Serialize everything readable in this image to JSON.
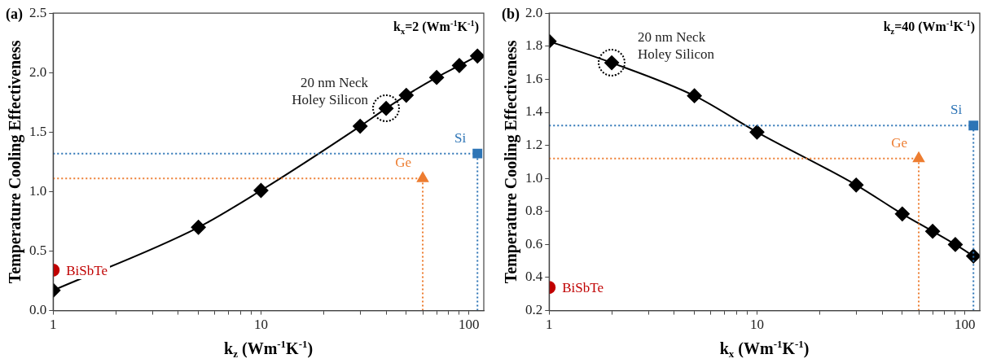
{
  "chart_data": [
    {
      "type": "line",
      "title": "(a)",
      "xlabel": "k$_{z}$ (Wm$^{-1}$K$^{-1}$)",
      "ylabel": "Temperature Cooling Effectiveness",
      "log": "x",
      "grid": false,
      "legend": false,
      "xlim": [
        1,
        118
      ],
      "xticks": [
        1,
        {
          "value": 2,
          "label": null
        },
        {
          "value": 3,
          "label": null
        },
        {
          "value": 4,
          "label": null
        },
        {
          "value": 5,
          "label": null
        },
        {
          "value": 6,
          "label": null
        },
        {
          "value": 7,
          "label": null
        },
        {
          "value": 8,
          "label": null
        },
        {
          "value": 9,
          "label": null
        },
        10,
        {
          "value": 20,
          "label": null
        },
        {
          "value": 30,
          "label": null
        },
        {
          "value": 40,
          "label": null
        },
        {
          "value": 50,
          "label": null
        },
        {
          "value": 60,
          "label": null
        },
        {
          "value": 70,
          "label": null
        },
        {
          "value": 80,
          "label": null
        },
        {
          "value": 90,
          "label": null
        },
        100
      ],
      "ylim": [
        0,
        2.5
      ],
      "yticks": [
        {
          "value": 0,
          "label": "0.0"
        },
        {
          "value": 0.5,
          "label": "0.5"
        },
        {
          "value": 1,
          "label": "1.0"
        },
        {
          "value": 1.5,
          "label": "1.5"
        },
        {
          "value": 2,
          "label": "2.0"
        },
        {
          "value": 2.5,
          "label": "2.5"
        }
      ],
      "series": [
        {
          "type": "line",
          "color": "#000000",
          "marker": "diamond",
          "x": [
            1,
            5,
            10,
            30,
            40,
            50,
            70,
            90,
            110
          ],
          "values": [
            0.17,
            0.7,
            1.01,
            1.55,
            1.7,
            1.81,
            1.96,
            2.06,
            2.14
          ]
        },
        {
          "type": "scatter",
          "name": "BiSbTe",
          "color": "#c00000",
          "marker": "circle",
          "x": [
            1
          ],
          "values": [
            0.34
          ]
        },
        {
          "type": "scatter",
          "name": "Si",
          "color": "#2e75b6",
          "marker": "square",
          "x": [
            110
          ],
          "values": [
            1.32
          ]
        },
        {
          "type": "scatter",
          "name": "Ge",
          "color": "#ed7d31",
          "marker": "triangle",
          "x": [
            60
          ],
          "values": [
            1.11
          ]
        }
      ],
      "ref_lines": [
        {
          "axis": "y",
          "value": 1.32,
          "color": "#2e75b6",
          "line_style": "dotted"
        },
        {
          "axis": "x",
          "value": 110,
          "color": "#2e75b6",
          "line_style": "dotted"
        },
        {
          "axis": "y",
          "value": 1.11,
          "color": "#ed7d31",
          "line_style": "dotted"
        },
        {
          "axis": "x",
          "value": 60,
          "color": "#ed7d31",
          "line_style": "dotted"
        }
      ],
      "annotations": [
        "k$_{x}$=2 (Wm$^{-1}$K$^{-1}$)",
        {
          "text": "20 nm Neck Holey Silicon",
          "x": 40,
          "y": 1.7
        }
      ]
    },
    {
      "type": "line",
      "title": "(b)",
      "xlabel": "k$_{x}$ (Wm$^{-1}$K$^{-1}$)",
      "ylabel": "Temperature Cooling Effectiveness",
      "log": "x",
      "grid": false,
      "legend": false,
      "xlim": [
        1,
        118
      ],
      "xticks": [
        1,
        {
          "value": 2,
          "label": null
        },
        {
          "value": 3,
          "label": null
        },
        {
          "value": 4,
          "label": null
        },
        {
          "value": 5,
          "label": null
        },
        {
          "value": 6,
          "label": null
        },
        {
          "value": 7,
          "label": null
        },
        {
          "value": 8,
          "label": null
        },
        {
          "value": 9,
          "label": null
        },
        10,
        {
          "value": 20,
          "label": null
        },
        {
          "value": 30,
          "label": null
        },
        {
          "value": 40,
          "label": null
        },
        {
          "value": 50,
          "label": null
        },
        {
          "value": 60,
          "label": null
        },
        {
          "value": 70,
          "label": null
        },
        {
          "value": 80,
          "label": null
        },
        {
          "value": 90,
          "label": null
        },
        100
      ],
      "ylim": [
        0.2,
        2.0
      ],
      "yticks": [
        {
          "value": 0.2,
          "label": "0.2"
        },
        {
          "value": 0.4,
          "label": "0.4"
        },
        {
          "value": 0.6,
          "label": "0.6"
        },
        {
          "value": 0.8,
          "label": "0.8"
        },
        {
          "value": 1.0,
          "label": "1.0"
        },
        {
          "value": 1.2,
          "label": "1.2"
        },
        {
          "value": 1.4,
          "label": "1.4"
        },
        {
          "value": 1.6,
          "label": "1.6"
        },
        {
          "value": 1.8,
          "label": "1.8"
        },
        {
          "value": 2.0,
          "label": "2.0"
        }
      ],
      "series": [
        {
          "type": "line",
          "color": "#000000",
          "marker": "diamond",
          "x": [
            1,
            2,
            5,
            10,
            30,
            50,
            70,
            90,
            110
          ],
          "values": [
            1.83,
            1.7,
            1.5,
            1.28,
            0.96,
            0.785,
            0.68,
            0.6,
            0.53
          ]
        },
        {
          "type": "scatter",
          "name": "BiSbTe",
          "color": "#c00000",
          "marker": "circle",
          "x": [
            1
          ],
          "values": [
            0.34
          ]
        },
        {
          "type": "scatter",
          "name": "Si",
          "color": "#2e75b6",
          "marker": "square",
          "x": [
            110
          ],
          "values": [
            1.32
          ]
        },
        {
          "type": "scatter",
          "name": "Ge",
          "color": "#ed7d31",
          "marker": "triangle",
          "x": [
            60
          ],
          "values": [
            1.12
          ]
        }
      ],
      "ref_lines": [
        {
          "axis": "y",
          "value": 1.32,
          "color": "#2e75b6",
          "line_style": "dotted"
        },
        {
          "axis": "x",
          "value": 110,
          "color": "#2e75b6",
          "line_style": "dotted"
        },
        {
          "axis": "y",
          "value": 1.12,
          "color": "#ed7d31",
          "line_style": "dotted"
        },
        {
          "axis": "x",
          "value": 60,
          "color": "#ed7d31",
          "line_style": "dotted"
        }
      ],
      "annotations": [
        "k$_{z}$=40 (Wm$^{-1}$K$^{-1}$)",
        {
          "text": "20 nm Neck Holey Silicon",
          "x": 2,
          "y": 1.7
        }
      ]
    }
  ]
}
